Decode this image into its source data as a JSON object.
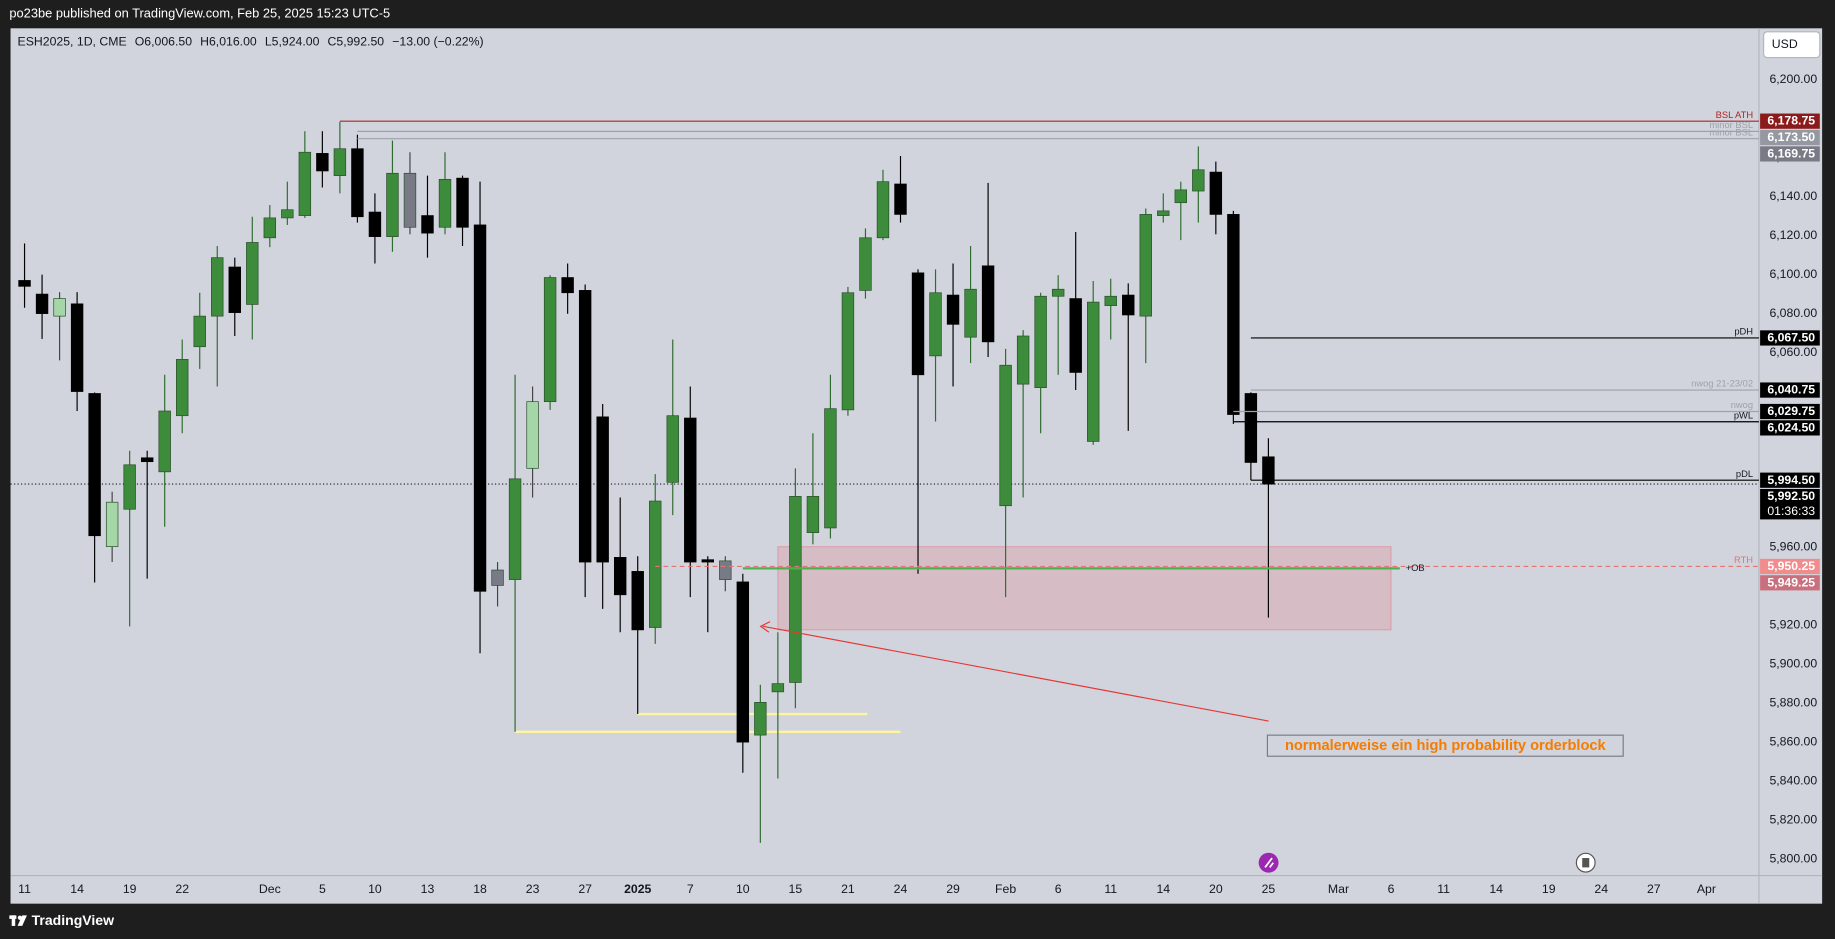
{
  "header": {
    "publisher": "po23be published on TradingView.com, Feb 25, 2025 15:23 UTC-5",
    "brand": "TradingView"
  },
  "chart_data": {
    "type": "candlestick",
    "symbol_info": "ESH2025, 1D, CME",
    "ohlc_labels": [
      "O6,006.50",
      "H6,016.00",
      "L5,924.00",
      "C5,992.50",
      "−13.00 (−0.22%)"
    ],
    "currency": "USD",
    "up_color": "#3c8c3c",
    "down_color": "#000000",
    "grid": false,
    "candles": [
      {
        "open": 6097,
        "high": 6116,
        "low": 6083,
        "close": 6094
      },
      {
        "open": 6090,
        "high": 6100,
        "low": 6067,
        "close": 6080
      },
      {
        "open": 6078.7,
        "high": 6091,
        "low": 6056,
        "close": 6087.7,
        "color": "#a5d6a7"
      },
      {
        "open": 6085,
        "high": 6091,
        "low": 6030,
        "close": 6040
      },
      {
        "open": 6039,
        "high": 6039.5,
        "low": 5942,
        "close": 5966
      },
      {
        "open": 5960.4,
        "high": 5988.6,
        "low": 5952.5,
        "close": 5983.2,
        "color": "#a5d6a7"
      },
      {
        "open": 5979.6,
        "high": 6009.6,
        "low": 5919.5,
        "close": 6002.4
      },
      {
        "open": 6006,
        "high": 6009.6,
        "low": 5944,
        "close": 6004
      },
      {
        "open": 5998.8,
        "high": 6048.6,
        "low": 5970.6,
        "close": 6030
      },
      {
        "open": 6027.6,
        "high": 6066.7,
        "low": 6018.6,
        "close": 6056.5
      },
      {
        "open": 6063,
        "high": 6090.7,
        "low": 6051.6,
        "close": 6078.7
      },
      {
        "open": 6078.7,
        "high": 6114.7,
        "low": 6042.6,
        "close": 6108.7
      },
      {
        "open": 6103.9,
        "high": 6108.7,
        "low": 6068.5,
        "close": 6080.5
      },
      {
        "open": 6084.7,
        "high": 6129.7,
        "low": 6066.7,
        "close": 6116.5
      },
      {
        "open": 6118.9,
        "high": 6135.7,
        "low": 6114.1,
        "close": 6129.1
      },
      {
        "open": 6129.1,
        "high": 6147.7,
        "low": 6125.5,
        "close": 6133.3
      },
      {
        "open": 6130.3,
        "high": 6173.6,
        "low": 6129.1,
        "close": 6162.8
      },
      {
        "open": 6162.2,
        "high": 6173.6,
        "low": 6144.7,
        "close": 6153.2
      },
      {
        "open": 6150.8,
        "high": 6178.4,
        "low": 6141.7,
        "close": 6164.6
      },
      {
        "open": 6164.6,
        "high": 6171.8,
        "low": 6126.7,
        "close": 6129.7
      },
      {
        "open": 6132.1,
        "high": 6141.7,
        "low": 6105.7,
        "close": 6119.5
      },
      {
        "open": 6119.5,
        "high": 6168.8,
        "low": 6111.7,
        "close": 6152
      },
      {
        "open": 6152,
        "high": 6162.8,
        "low": 6120.7,
        "close": 6124.3,
        "color": "#787b86"
      },
      {
        "open": 6130.3,
        "high": 6150.8,
        "low": 6108.7,
        "close": 6121.3
      },
      {
        "open": 6124.3,
        "high": 6162.8,
        "low": 6120.7,
        "close": 6148.9
      },
      {
        "open": 6149.5,
        "high": 6150.8,
        "low": 6114.7,
        "close": 6124.3
      },
      {
        "open": 6125.5,
        "high": 6147.7,
        "low": 5905.7,
        "close": 5937.5
      },
      {
        "open": 5948.4,
        "high": 5952.5,
        "low": 5929.7,
        "close": 5940.5,
        "color": "#787b86"
      },
      {
        "open": 5943.5,
        "high": 6048.6,
        "low": 5865.4,
        "close": 5995.2
      },
      {
        "open": 6000.6,
        "high": 6042.6,
        "low": 5985.6,
        "close": 6034.8,
        "color": "#a5d6a7"
      },
      {
        "open": 6034.8,
        "high": 6099.7,
        "low": 6030.6,
        "close": 6098.5
      },
      {
        "open": 6098.5,
        "high": 6105.7,
        "low": 6079.9,
        "close": 6090.7
      },
      {
        "open": 6091.9,
        "high": 6094.9,
        "low": 5934.5,
        "close": 5952.5
      },
      {
        "open": 6027,
        "high": 6033.6,
        "low": 5928.5,
        "close": 5952.5
      },
      {
        "open": 5954.9,
        "high": 5985.6,
        "low": 5916.5,
        "close": 5935.7
      },
      {
        "open": 5947.7,
        "high": 5955.5,
        "low": 5874.5,
        "close": 5917.7
      },
      {
        "open": 5918.9,
        "high": 5997.6,
        "low": 5910.5,
        "close": 5983.8
      },
      {
        "open": 5993.4,
        "high": 6066.7,
        "low": 5976.6,
        "close": 6027.6
      },
      {
        "open": 6026.4,
        "high": 6042.6,
        "low": 5934.5,
        "close": 5952.5
      },
      {
        "open": 5953.7,
        "high": 5955.5,
        "low": 5916.5,
        "close": 5952.5
      },
      {
        "open": 5953.1,
        "high": 5955.5,
        "low": 5937.5,
        "close": 5943.5,
        "color": "#787b86"
      },
      {
        "open": 5942.3,
        "high": 5946.5,
        "low": 5844.4,
        "close": 5860.1
      },
      {
        "open": 5863.7,
        "high": 5889.5,
        "low": 5808.4,
        "close": 5880.5
      },
      {
        "open": 5885.9,
        "high": 5916.5,
        "low": 5841.4,
        "close": 5890.1
      },
      {
        "open": 5890.7,
        "high": 6000.6,
        "low": 5877.5,
        "close": 5986.2
      },
      {
        "open": 5967.6,
        "high": 6018.6,
        "low": 5961.6,
        "close": 5986.2
      },
      {
        "open": 5970,
        "high": 6048.6,
        "low": 5964.6,
        "close": 6031.2
      },
      {
        "open": 6030.6,
        "high": 6093.7,
        "low": 6027.6,
        "close": 6090.7
      },
      {
        "open": 6091.9,
        "high": 6123.7,
        "low": 6087.7,
        "close": 6118.9
      },
      {
        "open": 6118.9,
        "high": 6153.8,
        "low": 6117.7,
        "close": 6147.7
      },
      {
        "open": 6146.5,
        "high": 6160.9,
        "low": 6126.7,
        "close": 6130.9
      },
      {
        "open": 6100.9,
        "high": 6102.7,
        "low": 5946.5,
        "close": 6048.6
      },
      {
        "open": 6058.3,
        "high": 6102.7,
        "low": 6024.6,
        "close": 6090.7
      },
      {
        "open": 6089.5,
        "high": 6105.7,
        "low": 6042.6,
        "close": 6074.5
      },
      {
        "open": 6067.9,
        "high": 6114.7,
        "low": 6054.6,
        "close": 6092.5
      },
      {
        "open": 6104.5,
        "high": 6147.1,
        "low": 6057.7,
        "close": 6065.5
      },
      {
        "open": 5981.4,
        "high": 6061.9,
        "low": 5934.5,
        "close": 6053.5
      },
      {
        "open": 6043.8,
        "high": 6071.5,
        "low": 5985.6,
        "close": 6068.5
      },
      {
        "open": 6042,
        "high": 6090.7,
        "low": 6018.6,
        "close": 6088.9
      },
      {
        "open": 6088.9,
        "high": 6099.7,
        "low": 6048.6,
        "close": 6092.5
      },
      {
        "open": 6087.7,
        "high": 6121.9,
        "low": 6040.8,
        "close": 6049.8
      },
      {
        "open": 6014.4,
        "high": 6096.7,
        "low": 6012.6,
        "close": 6085.9
      },
      {
        "open": 6084.1,
        "high": 6097.9,
        "low": 6066.7,
        "close": 6088.9
      },
      {
        "open": 6089.5,
        "high": 6095.5,
        "low": 6019.8,
        "close": 6079.3
      },
      {
        "open": 6078.7,
        "high": 6133.9,
        "low": 6054.6,
        "close": 6130.9
      },
      {
        "open": 6130.3,
        "high": 6141.7,
        "low": 6126.7,
        "close": 6132.7
      },
      {
        "open": 6136.9,
        "high": 6147.7,
        "low": 6117.7,
        "close": 6143.5
      },
      {
        "open": 6142.9,
        "high": 6165.8,
        "low": 6126.7,
        "close": 6153.8
      },
      {
        "open": 6152.6,
        "high": 6158,
        "low": 6120.7,
        "close": 6130.9
      },
      {
        "open": 6130.9,
        "high": 6132.7,
        "low": 6023.4,
        "close": 6028.2
      },
      {
        "open": 6039,
        "high": 6039.6,
        "low": 5994.5,
        "close": 6003.6
      },
      {
        "open": 6006.5,
        "high": 6016,
        "low": 5924,
        "close": 5992.5
      }
    ],
    "xlim": [
      -0.8,
      99
    ],
    "xticks": [
      {
        "value": 0,
        "label": "11"
      },
      {
        "value": 3,
        "label": "14"
      },
      {
        "value": 6,
        "label": "19"
      },
      {
        "value": 9,
        "label": "22"
      },
      {
        "value": 14,
        "label": "Dec"
      },
      {
        "value": 17,
        "label": "5"
      },
      {
        "value": 20,
        "label": "10"
      },
      {
        "value": 23,
        "label": "13"
      },
      {
        "value": 26,
        "label": "18"
      },
      {
        "value": 29,
        "label": "23"
      },
      {
        "value": 32,
        "label": "27"
      },
      {
        "value": 35,
        "label": "2025"
      },
      {
        "value": 38,
        "label": "7"
      },
      {
        "value": 41,
        "label": "10"
      },
      {
        "value": 44,
        "label": "15"
      },
      {
        "value": 47,
        "label": "21"
      },
      {
        "value": 50,
        "label": "24"
      },
      {
        "value": 53,
        "label": "29"
      },
      {
        "value": 56,
        "label": "Feb"
      },
      {
        "value": 59,
        "label": "6"
      },
      {
        "value": 62,
        "label": "11"
      },
      {
        "value": 65,
        "label": "14"
      },
      {
        "value": 68,
        "label": "20"
      },
      {
        "value": 71,
        "label": "25"
      },
      {
        "value": 75,
        "label": "Mar"
      },
      {
        "value": 78,
        "label": "6"
      },
      {
        "value": 81,
        "label": "11"
      },
      {
        "value": 84,
        "label": "14"
      },
      {
        "value": 87,
        "label": "19"
      },
      {
        "value": 90,
        "label": "24"
      },
      {
        "value": 93,
        "label": "27"
      },
      {
        "value": 96,
        "label": "Apr"
      }
    ],
    "ylim": [
      5791.6,
      6226.4
    ],
    "yticks": [
      {
        "value": 5800,
        "label": "5,800.00"
      },
      {
        "value": 5820,
        "label": "5,820.00"
      },
      {
        "value": 5840,
        "label": "5,840.00"
      },
      {
        "value": 5860,
        "label": "5,860.00"
      },
      {
        "value": 5880,
        "label": "5,880.00"
      },
      {
        "value": 5900,
        "label": "5,900.00"
      },
      {
        "value": 5920,
        "label": "5,920.00"
      },
      {
        "value": 5960,
        "label": "5,960.00"
      },
      {
        "value": 6060,
        "label": "6,060.00"
      },
      {
        "value": 6080,
        "label": "6,080.00"
      },
      {
        "value": 6100,
        "label": "6,100.00"
      },
      {
        "value": 6120,
        "label": "6,120.00"
      },
      {
        "value": 6140,
        "label": "6,140.00"
      },
      {
        "value": 6160,
        "label": "6,160.00"
      },
      {
        "value": 6200,
        "label": "6,200.00"
      }
    ],
    "levels": [
      {
        "name": "BSL ATH",
        "value": 6178.75,
        "value_label": "6,178.75",
        "start": 18,
        "color": "#b22222",
        "box_color": "#8b1a1a"
      },
      {
        "name": "minor BSL",
        "value": 6173.5,
        "value_label": "6,173.50",
        "start": 19,
        "color": "#9ea1a8",
        "box_color": "#9598a1"
      },
      {
        "name": "minor BSL",
        "value": 6169.75,
        "value_label": "6,169.75",
        "start": 19,
        "color": "#9ea1a8",
        "box_color": "#787b86"
      },
      {
        "name": "pDH",
        "value": 6067.5,
        "value_label": "6,067.50",
        "start": 70,
        "color": "#000000",
        "box_color": "#000000"
      },
      {
        "name": "nwog 21-23/02",
        "value": 6040.75,
        "value_label": "6,040.75",
        "start": 70,
        "color": "#9ea1a8",
        "box_color": "#000000"
      },
      {
        "name": "nwog",
        "value": 6029.75,
        "value_label": "6,029.75",
        "start": 69,
        "color": "#9ea1a8",
        "box_color": "#000000"
      },
      {
        "name": "pWL",
        "value": 6024.5,
        "value_label": "6,024.50",
        "start": 69,
        "color": "#000000",
        "box_color": "#000000"
      },
      {
        "name": "pDL",
        "value": 5994.5,
        "value_label": "5,994.50",
        "start": 70,
        "color": "#000000",
        "box_color": "#000000"
      },
      {
        "name": "RTH",
        "value": 5950.25,
        "value_label": "5,950.25",
        "start": 36,
        "color": "#e57373",
        "box_color": "#f28b8b",
        "dashed": true
      },
      {
        "name": "+OB",
        "value": 5949.25,
        "value_label": "5,949.25",
        "start": 41,
        "end": 78.5,
        "color": "#4caf50",
        "box_color": "#c9707f"
      }
    ],
    "current_price": {
      "value": 5992.5,
      "label": "5,992.50",
      "countdown": "01:36:33"
    },
    "zone": {
      "start": 43,
      "end": 78,
      "top": 5960.4,
      "bottom": 5917.7
    },
    "support_lines": [
      {
        "value": 5874.5,
        "start": 35,
        "end": 48.1
      },
      {
        "value": 5865.4,
        "start": 28,
        "end": 50
      }
    ],
    "annotation": "normalerweise ein high probability orderblock"
  }
}
